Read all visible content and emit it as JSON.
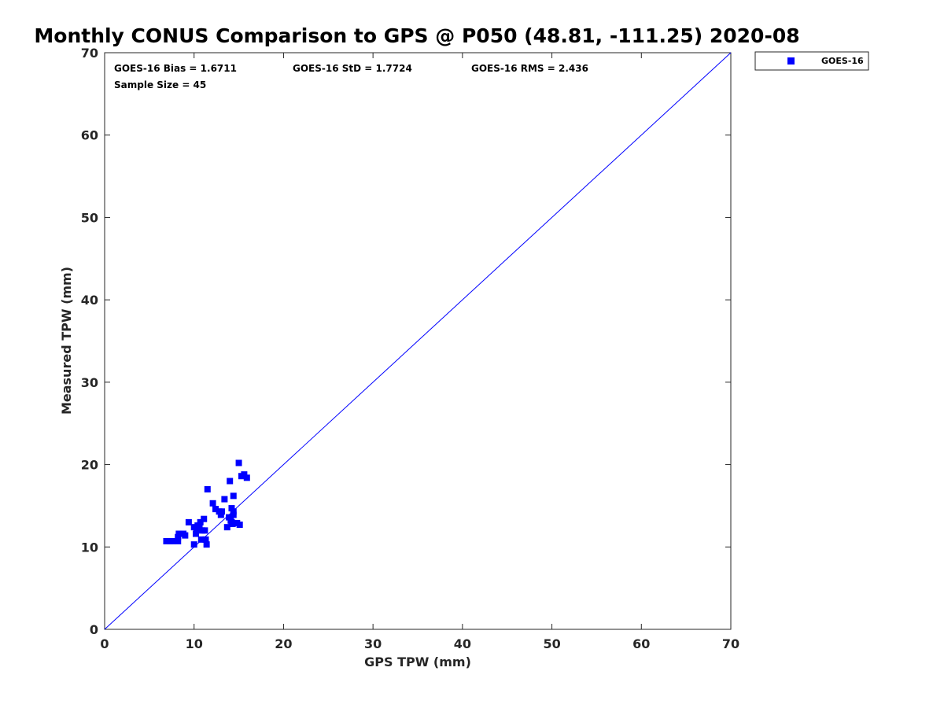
{
  "chart_data": {
    "type": "scatter",
    "title": "Monthly CONUS Comparison to GPS @ P050 (48.81, -111.25) 2020-08",
    "xlabel": "GPS TPW (mm)",
    "ylabel": "Measured TPW (mm)",
    "xlim": [
      0,
      70
    ],
    "ylim": [
      0,
      70
    ],
    "xticks": [
      0,
      10,
      20,
      30,
      40,
      50,
      60,
      70
    ],
    "yticks": [
      0,
      10,
      20,
      30,
      40,
      50,
      60,
      70
    ],
    "grid": false,
    "legend_position": "outside-top-right",
    "reference_line": {
      "x": [
        0,
        70
      ],
      "y": [
        0,
        70
      ],
      "color": "#0000ff"
    },
    "annotations": {
      "bias": "GOES-16 Bias = 1.6711",
      "std": "GOES-16 StD = 1.7724",
      "rms": "GOES-16 RMS = 2.436",
      "sample": "Sample Size = 45"
    },
    "series": [
      {
        "name": "GOES-16",
        "color": "#0000ff",
        "marker": "square",
        "points": [
          [
            6.9,
            10.7
          ],
          [
            7.3,
            10.7
          ],
          [
            7.6,
            10.7
          ],
          [
            8.2,
            10.7
          ],
          [
            8.2,
            11.2
          ],
          [
            8.3,
            11.6
          ],
          [
            8.8,
            11.6
          ],
          [
            9.0,
            11.4
          ],
          [
            9.4,
            13.0
          ],
          [
            10.0,
            10.3
          ],
          [
            10.0,
            12.4
          ],
          [
            10.2,
            11.6
          ],
          [
            10.3,
            12.2
          ],
          [
            10.6,
            12.6
          ],
          [
            10.7,
            13.0
          ],
          [
            10.8,
            10.9
          ],
          [
            10.9,
            12.0
          ],
          [
            11.2,
            12.0
          ],
          [
            11.1,
            13.4
          ],
          [
            11.3,
            10.9
          ],
          [
            11.4,
            10.3
          ],
          [
            11.5,
            17.0
          ],
          [
            12.1,
            15.3
          ],
          [
            12.4,
            14.6
          ],
          [
            12.8,
            14.3
          ],
          [
            13.0,
            13.9
          ],
          [
            13.1,
            14.3
          ],
          [
            13.4,
            15.8
          ],
          [
            13.7,
            12.4
          ],
          [
            13.9,
            13.6
          ],
          [
            14.0,
            18.0
          ],
          [
            14.1,
            13.2
          ],
          [
            14.2,
            14.7
          ],
          [
            14.3,
            12.8
          ],
          [
            14.4,
            14.3
          ],
          [
            14.4,
            16.2
          ],
          [
            14.4,
            13.9
          ],
          [
            14.8,
            12.9
          ],
          [
            15.0,
            20.2
          ],
          [
            15.1,
            12.7
          ],
          [
            15.3,
            18.6
          ],
          [
            15.6,
            18.8
          ],
          [
            15.9,
            18.4
          ],
          [
            14.2,
            13.0
          ],
          [
            10.4,
            12.6
          ]
        ]
      }
    ]
  }
}
